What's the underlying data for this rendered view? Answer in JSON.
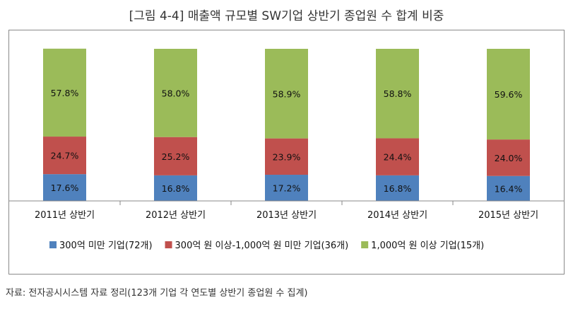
{
  "title": "[그림 4-4] 매출액 규모별 SW기업 상반기 종업원 수 합계 비중",
  "source": "자료: 전자공시시스템 자료 정리(123개 기업 각 연도별 상반기 종업원 수 집계)",
  "colors": {
    "small": "#4F81BD",
    "mid": "#C0504D",
    "large": "#9BBB59"
  },
  "chart_data": {
    "type": "bar",
    "stacked": true,
    "categories": [
      "2011년 상반기",
      "2012년 상반기",
      "2013년 상반기",
      "2014년 상반기",
      "2015년 상반기"
    ],
    "series": [
      {
        "name": "300억 미만 기업(72개)",
        "values": [
          17.6,
          16.8,
          17.2,
          16.8,
          16.4
        ],
        "labels": [
          "17.6%",
          "16.8%",
          "17.2%",
          "16.8%",
          "16.4%"
        ],
        "color": "#4F81BD"
      },
      {
        "name": "300억 원 이상-1,000억 원 미만 기업(36개)",
        "values": [
          24.7,
          25.2,
          23.9,
          24.4,
          24.0
        ],
        "labels": [
          "24.7%",
          "25.2%",
          "23.9%",
          "24.4%",
          "24.0%"
        ],
        "color": "#C0504D"
      },
      {
        "name": "1,000억 원 이상 기업(15개)",
        "values": [
          57.8,
          58.0,
          58.9,
          58.8,
          59.6
        ],
        "labels": [
          "57.8%",
          "58.0%",
          "58.9%",
          "58.8%",
          "59.6%"
        ],
        "color": "#9BBB59"
      }
    ],
    "ylim": [
      0,
      100
    ],
    "grid": false,
    "legend": "bottom"
  }
}
